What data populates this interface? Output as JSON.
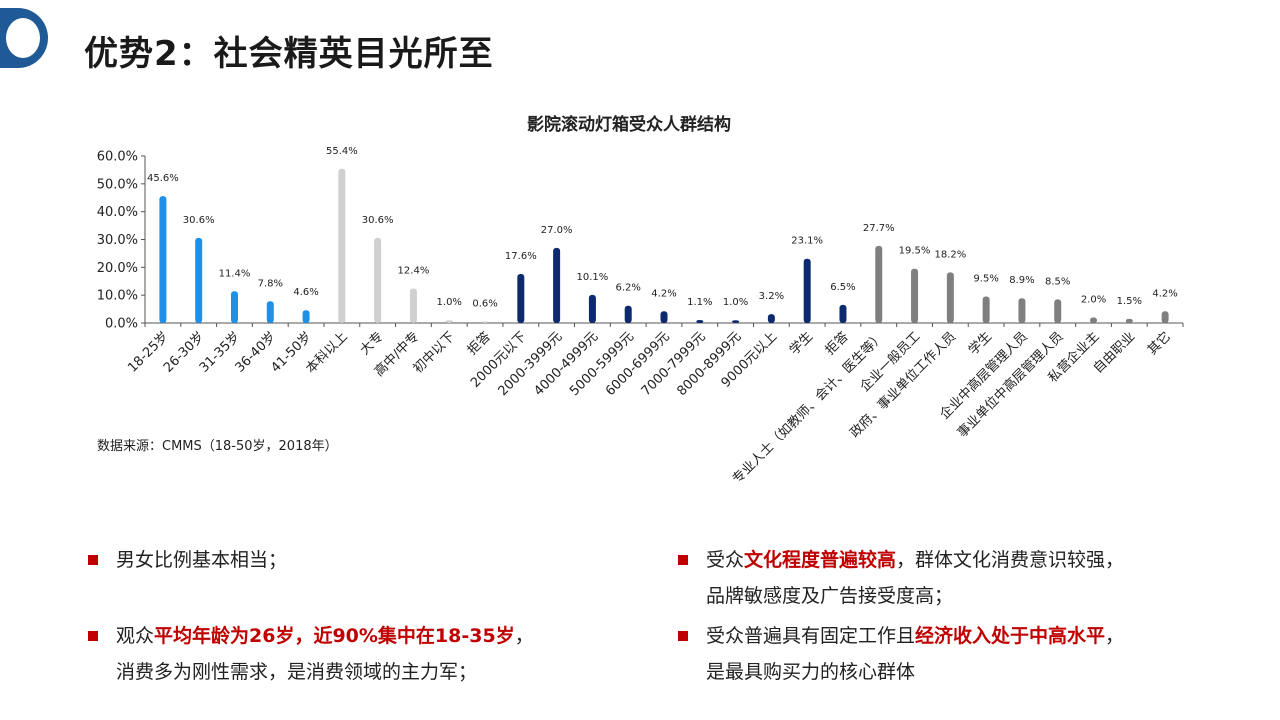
{
  "header": {
    "title": "优势2：社会精英目光所至"
  },
  "chart_data": {
    "type": "bar",
    "title": "影院滚动灯箱受众人群结构",
    "ylim": [
      0,
      60
    ],
    "yticks": [
      "0.0%",
      "10.0%",
      "20.0%",
      "30.0%",
      "40.0%",
      "50.0%",
      "60.0%"
    ],
    "grid": false,
    "categories": [
      "18-25岁",
      "26-30岁",
      "31-35岁",
      "36-40岁",
      "41-50岁",
      "本科以上",
      "大专",
      "高中/中专",
      "初中以下",
      "拒答",
      "2000元以下",
      "2000-3999元",
      "4000-4999元",
      "5000-5999元",
      "6000-6999元",
      "7000-7999元",
      "8000-8999元",
      "9000元以上",
      "学生",
      "拒答",
      "专业人士（如教师、会计、医生等）",
      "企业一般员工",
      "政府、事业单位工作人员",
      "学生",
      "企业中高层管理人员",
      "事业单位中高层管理人员",
      "私营企业主",
      "自由职业",
      "其它"
    ],
    "values": [
      45.6,
      30.6,
      11.4,
      7.8,
      4.6,
      55.4,
      30.6,
      12.4,
      1.0,
      0.6,
      17.6,
      27.0,
      10.1,
      6.2,
      4.2,
      1.1,
      1.0,
      3.2,
      23.1,
      6.5,
      27.7,
      19.5,
      18.2,
      9.5,
      8.9,
      8.5,
      2.0,
      1.5,
      4.2
    ],
    "data_labels": [
      "45.6%",
      "30.6%",
      "11.4%",
      "7.8%",
      "4.6%",
      "55.4%",
      "30.6%",
      "12.4%",
      "1.0%",
      "0.6%",
      "17.6%",
      "27.0%",
      "10.1%",
      "6.2%",
      "4.2%",
      "1.1%",
      "1.0%",
      "3.2%",
      "23.1%",
      "6.5%",
      "27.7%",
      "19.5%",
      "18.2%",
      "9.5%",
      "8.9%",
      "8.5%",
      "2.0%",
      "1.5%",
      "4.2%"
    ],
    "groups": [
      {
        "start": 0,
        "end": 4,
        "color": "#1e90e8"
      },
      {
        "start": 5,
        "end": 9,
        "color": "#d0d0d0"
      },
      {
        "start": 10,
        "end": 19,
        "color": "#0d2a6e"
      },
      {
        "start": 20,
        "end": 28,
        "color": "#7f7f7f"
      }
    ]
  },
  "source_note": "数据来源：CMMS（18-50岁，2018年）",
  "bullets": [
    {
      "parts": [
        {
          "text": "男女比例基本相当；",
          "em": false
        }
      ]
    },
    {
      "parts": [
        {
          "text": "观众",
          "em": false
        },
        {
          "text": "平均年龄为26岁，近90%集中在18-35岁",
          "em": true
        },
        {
          "text": "，",
          "em": false
        }
      ],
      "line2": "消费多为刚性需求，是消费领域的主力军；"
    },
    {
      "parts": [
        {
          "text": "受众",
          "em": false
        },
        {
          "text": "文化程度普遍较高",
          "em": true
        },
        {
          "text": "，群体文化消费意识较强，",
          "em": false
        }
      ],
      "line2": "品牌敏感度及广告接受度高；"
    },
    {
      "parts": [
        {
          "text": "受众普遍具有固定工作且",
          "em": false
        },
        {
          "text": "经济收入处于中高水平",
          "em": true
        },
        {
          "text": "，",
          "em": false
        }
      ],
      "line2": "是最具购买力的核心群体"
    }
  ]
}
